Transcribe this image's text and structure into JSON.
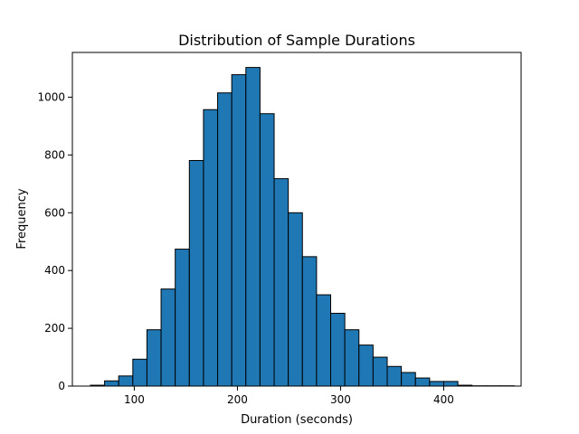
{
  "chart_data": {
    "type": "bar",
    "title": "Distribution of Sample Durations",
    "xlabel": "Duration (seconds)",
    "ylabel": "Frequency",
    "xlim": [
      40,
      475
    ],
    "ylim": [
      0,
      1155
    ],
    "xticks": [
      100,
      200,
      300,
      400
    ],
    "yticks": [
      0,
      200,
      400,
      600,
      800,
      1000
    ],
    "grid": false,
    "bin_edges": [
      57.5,
      71.2,
      84.9,
      98.6,
      112.3,
      126.0,
      139.7,
      153.4,
      167.1,
      180.8,
      194.5,
      208.2,
      221.9,
      235.6,
      249.3,
      263.0,
      276.7,
      290.4,
      304.1,
      317.8,
      331.5,
      345.2,
      358.9,
      372.6,
      386.3,
      400.0,
      413.7,
      427.4,
      441.1,
      454.8,
      468.5
    ],
    "values": [
      3,
      18,
      35,
      93,
      195,
      336,
      474,
      781,
      957,
      1015,
      1078,
      1103,
      943,
      718,
      600,
      448,
      316,
      252,
      195,
      142,
      100,
      68,
      47,
      28,
      16,
      16,
      3,
      1,
      1,
      1
    ],
    "bar_color": "#1f77b4",
    "edge_color": "#000000"
  }
}
